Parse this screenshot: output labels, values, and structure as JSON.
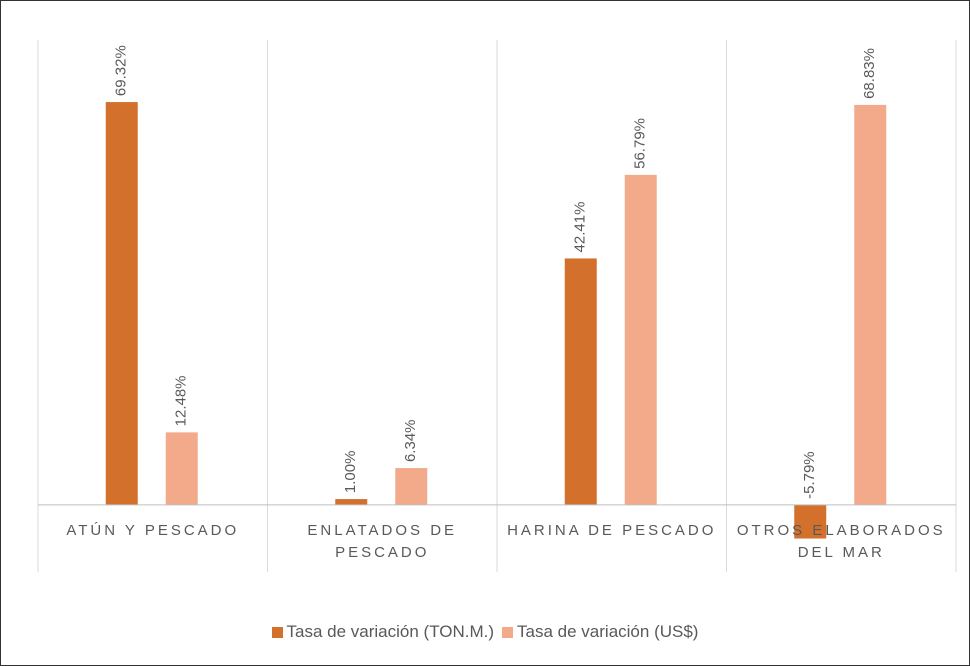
{
  "chart_data": {
    "type": "bar",
    "categories": [
      "ATÚN Y PESCADO",
      "ENLATADOS DE PESCADO",
      "HARINA DE PESCADO",
      "OTROS ELABORADOS DEL MAR"
    ],
    "series": [
      {
        "name": "Tasa de variación (TON.M.)",
        "color": "#d3702c",
        "values": [
          69.32,
          1.0,
          42.41,
          -5.79
        ],
        "value_labels": [
          "69.32%",
          "1.00%",
          "42.41%",
          "-5.79%"
        ]
      },
      {
        "name": "Tasa de variación (US$)",
        "color": "#f3aa8b",
        "values": [
          12.48,
          6.34,
          56.79,
          68.83
        ],
        "value_labels": [
          "12.48%",
          "6.34%",
          "56.79%",
          "68.83%"
        ]
      }
    ],
    "ylim": [
      -10,
      80
    ],
    "legend": "bottom"
  }
}
